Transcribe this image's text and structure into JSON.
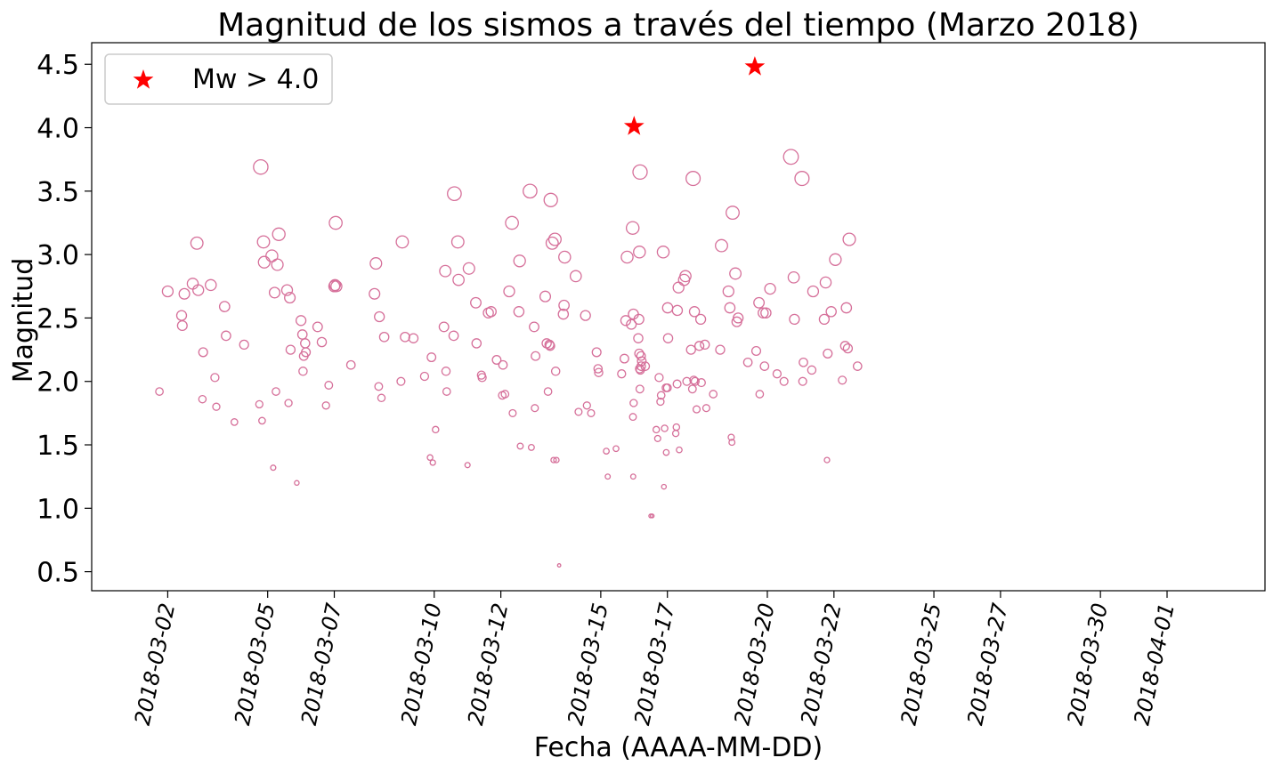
{
  "chart_data": {
    "type": "scatter",
    "title": "Magnitud de los sismos a través del tiempo (Marzo 2018)",
    "xlabel": "Fecha (AAAA-MM-DD)",
    "ylabel": "Magnitud",
    "xlim": [
      "2018-03-01",
      "2018-04-01"
    ],
    "ylim": [
      0.35,
      4.67
    ],
    "grid": false,
    "legend_position": "top-left",
    "x_ticks": [
      "2018-03-02",
      "2018-03-05",
      "2018-03-07",
      "2018-03-10",
      "2018-03-12",
      "2018-03-15",
      "2018-03-17",
      "2018-03-20",
      "2018-03-22",
      "2018-03-25",
      "2018-03-27",
      "2018-03-30",
      "2018-04-01"
    ],
    "y_ticks": [
      "0.5",
      "1.0",
      "1.5",
      "2.0",
      "2.5",
      "3.0",
      "3.5",
      "4.0",
      "4.5"
    ],
    "series": [
      {
        "marker": "open-circle",
        "color": "#d6709a",
        "points": [
          [
            "2018-03-01T18:00",
            1.92
          ],
          [
            "2018-03-02T00:00",
            2.71
          ],
          [
            "2018-03-02T10:00",
            2.52
          ],
          [
            "2018-03-02T10:30",
            2.44
          ],
          [
            "2018-03-02T12:00",
            2.69
          ],
          [
            "2018-03-02T18:00",
            2.77
          ],
          [
            "2018-03-02T21:00",
            3.09
          ],
          [
            "2018-03-02T22:00",
            2.72
          ],
          [
            "2018-03-03T01:00",
            1.86
          ],
          [
            "2018-03-03T01:30",
            2.23
          ],
          [
            "2018-03-03T07:00",
            2.76
          ],
          [
            "2018-03-03T10:00",
            2.03
          ],
          [
            "2018-03-03T11:00",
            1.8
          ],
          [
            "2018-03-03T17:00",
            2.59
          ],
          [
            "2018-03-03T18:00",
            2.36
          ],
          [
            "2018-03-04T00:00",
            1.68
          ],
          [
            "2018-03-04T07:00",
            2.29
          ],
          [
            "2018-03-04T18:00",
            1.82
          ],
          [
            "2018-03-04T19:00",
            3.69
          ],
          [
            "2018-03-04T20:00",
            1.69
          ],
          [
            "2018-03-04T21:00",
            3.1
          ],
          [
            "2018-03-04T21:30",
            2.94
          ],
          [
            "2018-03-05T03:00",
            2.99
          ],
          [
            "2018-03-05T04:00",
            1.32
          ],
          [
            "2018-03-05T05:00",
            2.7
          ],
          [
            "2018-03-05T06:00",
            1.92
          ],
          [
            "2018-03-05T07:00",
            2.92
          ],
          [
            "2018-03-05T08:00",
            3.16
          ],
          [
            "2018-03-05T14:00",
            2.72
          ],
          [
            "2018-03-05T15:00",
            1.83
          ],
          [
            "2018-03-05T16:00",
            2.66
          ],
          [
            "2018-03-05T16:30",
            2.25
          ],
          [
            "2018-03-05T21:00",
            1.2
          ],
          [
            "2018-03-06T00:00",
            2.48
          ],
          [
            "2018-03-06T01:00",
            2.37
          ],
          [
            "2018-03-06T01:30",
            2.08
          ],
          [
            "2018-03-06T02:00",
            2.2
          ],
          [
            "2018-03-06T03:00",
            2.3
          ],
          [
            "2018-03-06T03:30",
            2.23
          ],
          [
            "2018-03-06T12:00",
            2.43
          ],
          [
            "2018-03-06T15:00",
            2.31
          ],
          [
            "2018-03-06T18:00",
            1.81
          ],
          [
            "2018-03-06T20:00",
            1.97
          ],
          [
            "2018-03-07T00:00",
            2.75
          ],
          [
            "2018-03-07T00:30",
            2.76
          ],
          [
            "2018-03-07T01:00",
            3.25
          ],
          [
            "2018-03-07T01:30",
            2.75
          ],
          [
            "2018-03-07T12:00",
            2.13
          ],
          [
            "2018-03-08T05:00",
            2.69
          ],
          [
            "2018-03-08T06:00",
            2.93
          ],
          [
            "2018-03-08T08:00",
            1.96
          ],
          [
            "2018-03-08T08:30",
            2.51
          ],
          [
            "2018-03-08T10:00",
            1.87
          ],
          [
            "2018-03-08T12:00",
            2.35
          ],
          [
            "2018-03-09T00:00",
            2.0
          ],
          [
            "2018-03-09T01:00",
            3.1
          ],
          [
            "2018-03-09T03:00",
            2.35
          ],
          [
            "2018-03-09T09:00",
            2.34
          ],
          [
            "2018-03-09T17:00",
            2.04
          ],
          [
            "2018-03-09T21:00",
            1.4
          ],
          [
            "2018-03-09T22:00",
            2.19
          ],
          [
            "2018-03-09T23:00",
            1.36
          ],
          [
            "2018-03-10T01:00",
            1.62
          ],
          [
            "2018-03-10T07:00",
            2.43
          ],
          [
            "2018-03-10T08:00",
            2.87
          ],
          [
            "2018-03-10T08:30",
            2.08
          ],
          [
            "2018-03-10T09:00",
            1.92
          ],
          [
            "2018-03-10T14:00",
            2.36
          ],
          [
            "2018-03-10T14:30",
            3.48
          ],
          [
            "2018-03-10T17:00",
            3.1
          ],
          [
            "2018-03-10T17:30",
            2.8
          ],
          [
            "2018-03-11T00:00",
            1.34
          ],
          [
            "2018-03-11T01:00",
            2.89
          ],
          [
            "2018-03-11T06:00",
            2.62
          ],
          [
            "2018-03-11T06:30",
            2.3
          ],
          [
            "2018-03-11T10:00",
            2.05
          ],
          [
            "2018-03-11T10:30",
            2.03
          ],
          [
            "2018-03-11T15:00",
            2.54
          ],
          [
            "2018-03-11T17:00",
            2.55
          ],
          [
            "2018-03-11T21:00",
            2.17
          ],
          [
            "2018-03-12T01:00",
            1.89
          ],
          [
            "2018-03-12T01:30",
            2.13
          ],
          [
            "2018-03-12T03:00",
            1.9
          ],
          [
            "2018-03-12T06:00",
            2.71
          ],
          [
            "2018-03-12T08:00",
            3.25
          ],
          [
            "2018-03-12T08:30",
            1.75
          ],
          [
            "2018-03-12T13:00",
            2.55
          ],
          [
            "2018-03-12T13:30",
            2.95
          ],
          [
            "2018-03-12T14:00",
            1.49
          ],
          [
            "2018-03-12T21:00",
            3.5
          ],
          [
            "2018-03-12T22:00",
            1.48
          ],
          [
            "2018-03-13T00:00",
            2.43
          ],
          [
            "2018-03-13T00:30",
            1.79
          ],
          [
            "2018-03-13T01:00",
            2.2
          ],
          [
            "2018-03-13T08:00",
            2.67
          ],
          [
            "2018-03-13T09:00",
            2.3
          ],
          [
            "2018-03-13T10:00",
            1.92
          ],
          [
            "2018-03-13T11:00",
            2.29
          ],
          [
            "2018-03-13T11:30",
            2.28
          ],
          [
            "2018-03-13T12:00",
            3.43
          ],
          [
            "2018-03-13T13:00",
            3.09
          ],
          [
            "2018-03-13T14:00",
            1.38
          ],
          [
            "2018-03-13T15:00",
            3.12
          ],
          [
            "2018-03-13T15:30",
            2.08
          ],
          [
            "2018-03-13T16:00",
            1.38
          ],
          [
            "2018-03-13T18:00",
            0.55
          ],
          [
            "2018-03-13T21:00",
            2.53
          ],
          [
            "2018-03-13T21:30",
            2.6
          ],
          [
            "2018-03-13T22:00",
            2.98
          ],
          [
            "2018-03-14T06:00",
            2.83
          ],
          [
            "2018-03-14T08:00",
            1.76
          ],
          [
            "2018-03-14T13:00",
            2.52
          ],
          [
            "2018-03-14T14:00",
            1.81
          ],
          [
            "2018-03-14T17:00",
            1.75
          ],
          [
            "2018-03-14T21:00",
            2.23
          ],
          [
            "2018-03-14T22:00",
            2.1
          ],
          [
            "2018-03-14T22:30",
            2.07
          ],
          [
            "2018-03-15T04:00",
            1.45
          ],
          [
            "2018-03-15T05:00",
            1.25
          ],
          [
            "2018-03-15T11:00",
            1.47
          ],
          [
            "2018-03-15T15:00",
            2.06
          ],
          [
            "2018-03-15T17:00",
            2.18
          ],
          [
            "2018-03-15T18:00",
            2.48
          ],
          [
            "2018-03-15T19:00",
            2.98
          ],
          [
            "2018-03-15T22:00",
            2.45
          ],
          [
            "2018-03-15T23:00",
            3.21
          ],
          [
            "2018-03-15T23:10",
            1.72
          ],
          [
            "2018-03-15T23:20",
            1.25
          ],
          [
            "2018-03-15T23:30",
            2.53
          ],
          [
            "2018-03-15T23:40",
            1.83
          ],
          [
            "2018-03-16T03:00",
            2.34
          ],
          [
            "2018-03-16T03:30",
            2.49
          ],
          [
            "2018-03-16T03:40",
            2.22
          ],
          [
            "2018-03-16T03:50",
            3.02
          ],
          [
            "2018-03-16T04:00",
            2.1
          ],
          [
            "2018-03-16T04:10",
            1.94
          ],
          [
            "2018-03-16T04:20",
            3.65
          ],
          [
            "2018-03-16T04:30",
            2.09
          ],
          [
            "2018-03-16T05:00",
            2.2
          ],
          [
            "2018-03-16T05:10",
            2.12
          ],
          [
            "2018-03-16T05:30",
            2.16
          ],
          [
            "2018-03-16T08:00",
            2.12
          ],
          [
            "2018-03-16T12:00",
            0.94
          ],
          [
            "2018-03-16T13:00",
            0.94
          ],
          [
            "2018-03-16T16:00",
            1.62
          ],
          [
            "2018-03-16T17:00",
            1.55
          ],
          [
            "2018-03-16T18:00",
            2.03
          ],
          [
            "2018-03-16T19:00",
            1.84
          ],
          [
            "2018-03-16T19:30",
            1.89
          ],
          [
            "2018-03-16T21:00",
            3.02
          ],
          [
            "2018-03-16T21:30",
            1.17
          ],
          [
            "2018-03-16T22:00",
            1.63
          ],
          [
            "2018-03-16T23:00",
            1.95
          ],
          [
            "2018-03-16T23:10",
            1.44
          ],
          [
            "2018-03-17T00:00",
            1.95
          ],
          [
            "2018-03-17T00:10",
            2.58
          ],
          [
            "2018-03-17T00:30",
            2.34
          ],
          [
            "2018-03-17T06:00",
            1.59
          ],
          [
            "2018-03-17T06:30",
            1.64
          ],
          [
            "2018-03-17T07:00",
            1.98
          ],
          [
            "2018-03-17T07:10",
            2.56
          ],
          [
            "2018-03-17T08:00",
            2.74
          ],
          [
            "2018-03-17T08:30",
            1.46
          ],
          [
            "2018-03-17T12:00",
            2.8
          ],
          [
            "2018-03-17T13:00",
            2.83
          ],
          [
            "2018-03-17T14:00",
            2.0
          ],
          [
            "2018-03-17T17:00",
            2.25
          ],
          [
            "2018-03-17T18:00",
            1.94
          ],
          [
            "2018-03-17T18:30",
            3.6
          ],
          [
            "2018-03-17T19:00",
            2.01
          ],
          [
            "2018-03-17T19:30",
            2.55
          ],
          [
            "2018-03-17T20:00",
            2.0
          ],
          [
            "2018-03-17T21:00",
            1.78
          ],
          [
            "2018-03-17T23:00",
            2.28
          ],
          [
            "2018-03-18T00:00",
            2.49
          ],
          [
            "2018-03-18T00:30",
            1.99
          ],
          [
            "2018-03-18T03:00",
            2.29
          ],
          [
            "2018-03-18T04:00",
            1.79
          ],
          [
            "2018-03-18T09:00",
            1.9
          ],
          [
            "2018-03-18T14:00",
            2.25
          ],
          [
            "2018-03-18T15:00",
            3.07
          ],
          [
            "2018-03-18T20:00",
            2.71
          ],
          [
            "2018-03-18T21:00",
            2.58
          ],
          [
            "2018-03-18T22:00",
            1.56
          ],
          [
            "2018-03-18T22:30",
            1.52
          ],
          [
            "2018-03-18T23:00",
            3.33
          ],
          [
            "2018-03-19T01:00",
            2.85
          ],
          [
            "2018-03-19T02:00",
            2.47
          ],
          [
            "2018-03-19T03:00",
            2.5
          ],
          [
            "2018-03-19T10:00",
            2.15
          ],
          [
            "2018-03-19T16:00",
            2.24
          ],
          [
            "2018-03-19T18:00",
            2.62
          ],
          [
            "2018-03-19T18:30",
            1.9
          ],
          [
            "2018-03-19T21:00",
            2.54
          ],
          [
            "2018-03-19T22:00",
            2.12
          ],
          [
            "2018-03-19T23:00",
            2.54
          ],
          [
            "2018-03-20T02:00",
            2.73
          ],
          [
            "2018-03-20T07:00",
            2.06
          ],
          [
            "2018-03-20T12:00",
            2.0
          ],
          [
            "2018-03-20T17:00",
            3.77
          ],
          [
            "2018-03-20T19:00",
            2.82
          ],
          [
            "2018-03-20T19:30",
            2.49
          ],
          [
            "2018-03-21T01:00",
            3.6
          ],
          [
            "2018-03-21T01:30",
            2.0
          ],
          [
            "2018-03-21T02:00",
            2.15
          ],
          [
            "2018-03-21T08:00",
            2.09
          ],
          [
            "2018-03-21T09:00",
            2.71
          ],
          [
            "2018-03-21T17:00",
            2.49
          ],
          [
            "2018-03-21T18:00",
            2.78
          ],
          [
            "2018-03-21T19:00",
            1.38
          ],
          [
            "2018-03-21T19:30",
            2.22
          ],
          [
            "2018-03-21T22:00",
            2.55
          ],
          [
            "2018-03-22T01:00",
            2.96
          ],
          [
            "2018-03-22T06:00",
            2.01
          ],
          [
            "2018-03-22T08:00",
            2.28
          ],
          [
            "2018-03-22T09:00",
            2.58
          ],
          [
            "2018-03-22T10:00",
            2.26
          ],
          [
            "2018-03-22T11:00",
            3.12
          ],
          [
            "2018-03-22T17:00",
            2.12
          ]
        ]
      },
      {
        "name": "Mw > 4.0",
        "marker": "star",
        "color": "#ff0000",
        "points": [
          [
            "2018-03-16T00:00",
            4.01
          ],
          [
            "2018-03-19T15:00",
            4.48
          ]
        ]
      }
    ]
  }
}
